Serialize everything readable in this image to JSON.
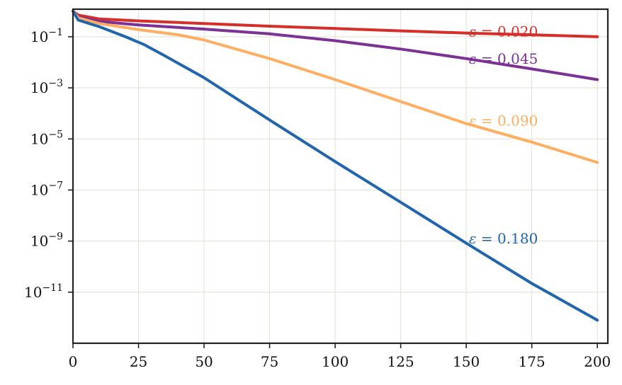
{
  "chart_data": {
    "type": "line",
    "title": "",
    "xlabel": "",
    "ylabel": "",
    "xlim": [
      0,
      204
    ],
    "ylim": [
      1e-13,
      1.2
    ],
    "yscale": "log",
    "grid": true,
    "x_ticks": [
      0,
      25,
      50,
      75,
      100,
      125,
      150,
      175,
      200
    ],
    "x_tick_labels": [
      "0",
      "25",
      "50",
      "75",
      "100",
      "125",
      "150",
      "175",
      "200"
    ],
    "y_ticks": [
      1e-11,
      1e-09,
      1e-07,
      1e-05,
      0.001,
      0.1
    ],
    "y_tick_labels": [
      {
        "base": "10",
        "exp": "−11"
      },
      {
        "base": "10",
        "exp": "−9"
      },
      {
        "base": "10",
        "exp": "−7"
      },
      {
        "base": "10",
        "exp": "−5"
      },
      {
        "base": "10",
        "exp": "−3"
      },
      {
        "base": "10",
        "exp": "−1"
      }
    ],
    "series": [
      {
        "name": "ε = 0.020",
        "label_parts": {
          "sym": "ε",
          "rest": " = 0.020"
        },
        "color": "#d62f2a",
        "points": [
          [
            0,
            1.0
          ],
          [
            2,
            0.7
          ],
          [
            10,
            0.5
          ],
          [
            25,
            0.42
          ],
          [
            50,
            0.33
          ],
          [
            75,
            0.26
          ],
          [
            100,
            0.21
          ],
          [
            125,
            0.17
          ],
          [
            150,
            0.14
          ],
          [
            175,
            0.12
          ],
          [
            200,
            0.1
          ]
        ]
      },
      {
        "name": "ε = 0.045",
        "label_parts": {
          "sym": "ε",
          "rest": " = 0.045"
        },
        "color": "#7b3294",
        "points": [
          [
            0,
            1.0
          ],
          [
            2,
            0.6
          ],
          [
            10,
            0.4
          ],
          [
            25,
            0.29
          ],
          [
            50,
            0.2
          ],
          [
            75,
            0.13
          ],
          [
            100,
            0.07
          ],
          [
            125,
            0.033
          ],
          [
            150,
            0.014
          ],
          [
            175,
            0.0055
          ],
          [
            200,
            0.0021
          ]
        ]
      },
      {
        "name": "ε = 0.090",
        "label_parts": {
          "sym": "ε",
          "rest": " = 0.090"
        },
        "color": "#fdae61",
        "points": [
          [
            0,
            1.0
          ],
          [
            2,
            0.55
          ],
          [
            10,
            0.33
          ],
          [
            25,
            0.19
          ],
          [
            40,
            0.12
          ],
          [
            50,
            0.075
          ],
          [
            75,
            0.014
          ],
          [
            100,
            0.0021
          ],
          [
            125,
            0.00029
          ],
          [
            150,
            4e-05
          ],
          [
            175,
            7.5e-06
          ],
          [
            200,
            1.2e-06
          ]
        ]
      },
      {
        "name": "ε = 0.180",
        "label_parts": {
          "sym": "ε",
          "rest": " = 0.180"
        },
        "color": "#2166ac",
        "points": [
          [
            0,
            1.0
          ],
          [
            2,
            0.45
          ],
          [
            10,
            0.25
          ],
          [
            20,
            0.1
          ],
          [
            27,
            0.05
          ],
          [
            35,
            0.018
          ],
          [
            50,
            0.0025
          ],
          [
            75,
            5.5e-05
          ],
          [
            100,
            1.3e-06
          ],
          [
            125,
            3.3e-08
          ],
          [
            150,
            8.3e-10
          ],
          [
            175,
            2.2e-11
          ],
          [
            200,
            8e-13
          ]
        ]
      }
    ],
    "annotations": [
      {
        "series": 0,
        "anchor": [
          151,
          0.16
        ]
      },
      {
        "series": 1,
        "anchor": [
          151,
          0.014
        ]
      },
      {
        "series": 2,
        "anchor": [
          151,
          5.2e-05
        ]
      },
      {
        "series": 3,
        "anchor": [
          151,
          1.25e-09
        ]
      }
    ]
  }
}
